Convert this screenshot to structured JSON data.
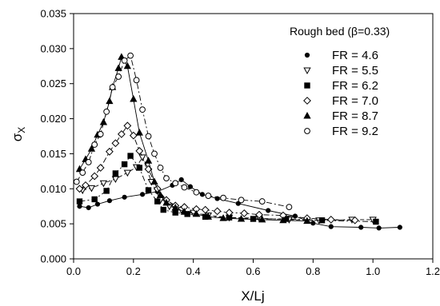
{
  "chart_data": {
    "type": "scatter",
    "xlabel": "X/Lj",
    "ylabel_main": "σ",
    "ylabel_sub": "X",
    "xlim": [
      0,
      1.2
    ],
    "ylim": [
      0,
      0.035
    ],
    "x_ticks": [
      "0.0",
      "0.2",
      "0.4",
      "0.6",
      "0.8",
      "1.0",
      "1.2"
    ],
    "y_ticks": [
      "0.000",
      "0.005",
      "0.010",
      "0.015",
      "0.020",
      "0.025",
      "0.030",
      "0.035"
    ],
    "legend_title": "Rough bed (β=0.33)",
    "legend_position": "top-right",
    "grid": false,
    "series": [
      {
        "name": "FR = 4.6",
        "marker": "filled-circle",
        "line": "solid",
        "points": [
          [
            0.02,
            0.0075
          ],
          [
            0.05,
            0.0073
          ],
          [
            0.08,
            0.0078
          ],
          [
            0.12,
            0.0083
          ],
          [
            0.17,
            0.0088
          ],
          [
            0.23,
            0.0092
          ],
          [
            0.28,
            0.0096
          ],
          [
            0.33,
            0.0105
          ],
          [
            0.36,
            0.0113
          ],
          [
            0.39,
            0.0103
          ],
          [
            0.43,
            0.0092
          ],
          [
            0.48,
            0.0086
          ],
          [
            0.55,
            0.0079
          ],
          [
            0.65,
            0.0069
          ],
          [
            0.74,
            0.0061
          ],
          [
            0.8,
            0.0051
          ],
          [
            0.86,
            0.0046
          ],
          [
            0.96,
            0.0045
          ],
          [
            1.02,
            0.0044
          ],
          [
            1.09,
            0.0045
          ]
        ]
      },
      {
        "name": "FR = 5.5",
        "marker": "open-triangle-down",
        "line": "dashed",
        "points": [
          [
            0.03,
            0.0098
          ],
          [
            0.06,
            0.0101
          ],
          [
            0.1,
            0.0108
          ],
          [
            0.14,
            0.0114
          ],
          [
            0.18,
            0.0123
          ],
          [
            0.21,
            0.0131
          ],
          [
            0.23,
            0.0145
          ],
          [
            0.26,
            0.011
          ],
          [
            0.29,
            0.0084
          ],
          [
            0.32,
            0.0075
          ],
          [
            0.36,
            0.007
          ],
          [
            0.4,
            0.0066
          ],
          [
            0.45,
            0.0062
          ],
          [
            0.52,
            0.0059
          ],
          [
            0.62,
            0.0058
          ],
          [
            0.72,
            0.0056
          ],
          [
            0.82,
            0.0055
          ],
          [
            0.93,
            0.0056
          ],
          [
            1.0,
            0.0056
          ]
        ]
      },
      {
        "name": "FR = 6.2",
        "marker": "filled-square",
        "line": "dash-dot",
        "points": [
          [
            0.02,
            0.0082
          ],
          [
            0.07,
            0.0085
          ],
          [
            0.11,
            0.0097
          ],
          [
            0.14,
            0.0122
          ],
          [
            0.17,
            0.0135
          ],
          [
            0.19,
            0.0147
          ],
          [
            0.22,
            0.013
          ],
          [
            0.25,
            0.0098
          ],
          [
            0.28,
            0.0082
          ],
          [
            0.3,
            0.007
          ],
          [
            0.34,
            0.0066
          ],
          [
            0.38,
            0.0064
          ],
          [
            0.44,
            0.006
          ],
          [
            0.52,
            0.0059
          ],
          [
            0.6,
            0.0057
          ],
          [
            0.71,
            0.0057
          ],
          [
            0.83,
            0.0055
          ],
          [
            1.01,
            0.0053
          ]
        ]
      },
      {
        "name": "FR = 7.0",
        "marker": "open-diamond",
        "line": "dash-dot",
        "points": [
          [
            0.02,
            0.01
          ],
          [
            0.04,
            0.0105
          ],
          [
            0.07,
            0.0118
          ],
          [
            0.09,
            0.013
          ],
          [
            0.12,
            0.0153
          ],
          [
            0.14,
            0.0165
          ],
          [
            0.16,
            0.0178
          ],
          [
            0.18,
            0.019
          ],
          [
            0.2,
            0.0176
          ],
          [
            0.22,
            0.0154
          ],
          [
            0.25,
            0.0128
          ],
          [
            0.28,
            0.01
          ],
          [
            0.31,
            0.0084
          ],
          [
            0.34,
            0.0076
          ],
          [
            0.37,
            0.0074
          ],
          [
            0.41,
            0.0071
          ],
          [
            0.44,
            0.007
          ],
          [
            0.48,
            0.0068
          ],
          [
            0.52,
            0.0066
          ],
          [
            0.57,
            0.0065
          ],
          [
            0.62,
            0.0063
          ],
          [
            0.7,
            0.0062
          ],
          [
            0.78,
            0.0058
          ],
          [
            0.86,
            0.0056
          ],
          [
            0.94,
            0.0055
          ]
        ]
      },
      {
        "name": "FR = 8.7",
        "marker": "filled-triangle",
        "line": "solid",
        "points": [
          [
            0.02,
            0.0128
          ],
          [
            0.04,
            0.0142
          ],
          [
            0.06,
            0.0157
          ],
          [
            0.08,
            0.0177
          ],
          [
            0.1,
            0.0195
          ],
          [
            0.12,
            0.0225
          ],
          [
            0.13,
            0.0245
          ],
          [
            0.15,
            0.0272
          ],
          [
            0.16,
            0.0288
          ],
          [
            0.18,
            0.0275
          ],
          [
            0.2,
            0.0228
          ],
          [
            0.22,
            0.018
          ],
          [
            0.25,
            0.014
          ],
          [
            0.27,
            0.011
          ],
          [
            0.29,
            0.0091
          ],
          [
            0.31,
            0.008
          ],
          [
            0.34,
            0.0073
          ],
          [
            0.37,
            0.0067
          ],
          [
            0.41,
            0.0064
          ],
          [
            0.45,
            0.006
          ],
          [
            0.5,
            0.0058
          ],
          [
            0.56,
            0.0057
          ],
          [
            0.63,
            0.0056
          ],
          [
            0.7,
            0.0055
          ],
          [
            0.78,
            0.0054
          ]
        ]
      },
      {
        "name": "FR = 9.2",
        "marker": "open-circle",
        "line": "dash-dot",
        "points": [
          [
            0.01,
            0.011
          ],
          [
            0.03,
            0.0123
          ],
          [
            0.05,
            0.0138
          ],
          [
            0.07,
            0.0163
          ],
          [
            0.09,
            0.0178
          ],
          [
            0.11,
            0.021
          ],
          [
            0.13,
            0.0245
          ],
          [
            0.15,
            0.026
          ],
          [
            0.17,
            0.0283
          ],
          [
            0.19,
            0.029
          ],
          [
            0.21,
            0.0255
          ],
          [
            0.23,
            0.0213
          ],
          [
            0.25,
            0.0175
          ],
          [
            0.27,
            0.015
          ],
          [
            0.29,
            0.013
          ],
          [
            0.31,
            0.0115
          ],
          [
            0.34,
            0.0108
          ],
          [
            0.37,
            0.0102
          ],
          [
            0.41,
            0.0095
          ],
          [
            0.45,
            0.009
          ],
          [
            0.5,
            0.0087
          ],
          [
            0.56,
            0.0084
          ],
          [
            0.63,
            0.0082
          ],
          [
            0.72,
            0.0074
          ]
        ]
      }
    ]
  }
}
